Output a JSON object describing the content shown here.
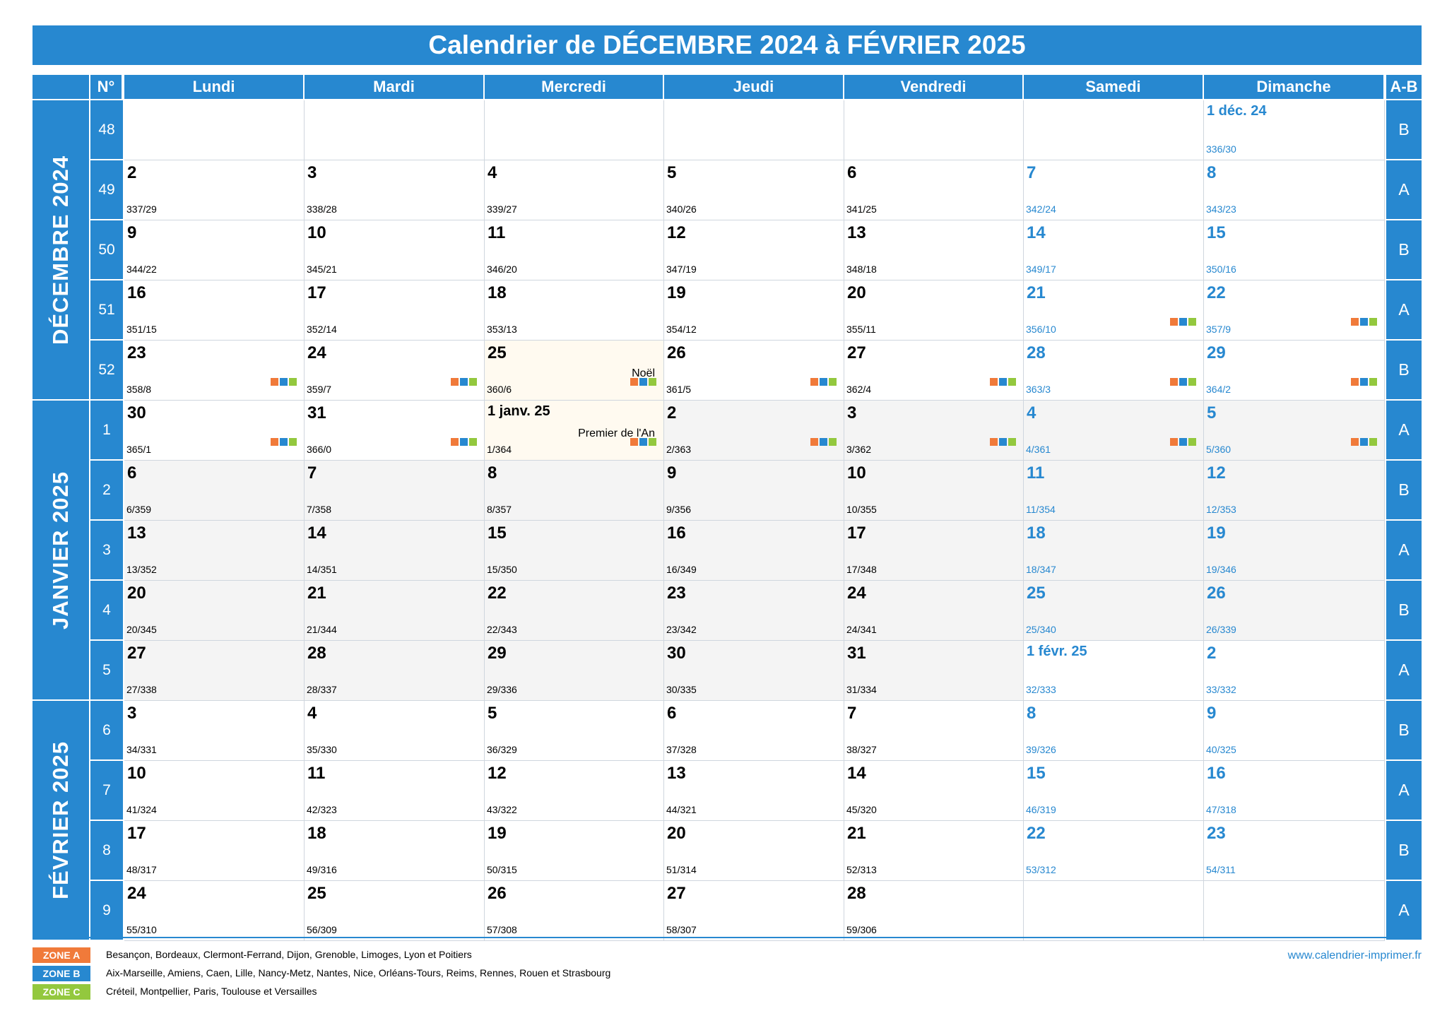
{
  "title": "Calendrier de DÉCEMBRE 2024 à FÉVRIER 2025",
  "header": {
    "num": "N°",
    "days": [
      "Lundi",
      "Mardi",
      "Mercredi",
      "Jeudi",
      "Vendredi",
      "Samedi",
      "Dimanche"
    ],
    "ab": "A-B"
  },
  "months": [
    {
      "label": "DÉCEMBRE 2024",
      "first_row": 0,
      "rows": 5
    },
    {
      "label": "JANVIER 2025",
      "first_row": 5,
      "rows": 5
    },
    {
      "label": "FÉVRIER 2025",
      "first_row": 10,
      "rows": 4
    }
  ],
  "weeks": [
    {
      "n": "48",
      "ab": "B",
      "days": [
        null,
        null,
        null,
        null,
        null,
        null,
        {
          "d": "1 déc. 24",
          "n": "336/30"
        }
      ]
    },
    {
      "n": "49",
      "ab": "A",
      "days": [
        {
          "d": "2",
          "n": "337/29"
        },
        {
          "d": "3",
          "n": "338/28"
        },
        {
          "d": "4",
          "n": "339/27"
        },
        {
          "d": "5",
          "n": "340/26"
        },
        {
          "d": "6",
          "n": "341/25"
        },
        {
          "d": "7",
          "n": "342/24"
        },
        {
          "d": "8",
          "n": "343/23"
        }
      ]
    },
    {
      "n": "50",
      "ab": "B",
      "days": [
        {
          "d": "9",
          "n": "344/22"
        },
        {
          "d": "10",
          "n": "345/21"
        },
        {
          "d": "11",
          "n": "346/20"
        },
        {
          "d": "12",
          "n": "347/19"
        },
        {
          "d": "13",
          "n": "348/18"
        },
        {
          "d": "14",
          "n": "349/17"
        },
        {
          "d": "15",
          "n": "350/16"
        }
      ]
    },
    {
      "n": "51",
      "ab": "A",
      "days": [
        {
          "d": "16",
          "n": "351/15"
        },
        {
          "d": "17",
          "n": "352/14"
        },
        {
          "d": "18",
          "n": "353/13"
        },
        {
          "d": "19",
          "n": "354/12"
        },
        {
          "d": "20",
          "n": "355/11"
        },
        {
          "d": "21",
          "n": "356/10",
          "z": true
        },
        {
          "d": "22",
          "n": "357/9",
          "z": true
        }
      ]
    },
    {
      "n": "52",
      "ab": "B",
      "days": [
        {
          "d": "23",
          "n": "358/8",
          "z": true
        },
        {
          "d": "24",
          "n": "359/7",
          "z": true
        },
        {
          "d": "25",
          "n": "360/6",
          "z": true,
          "h": "Noël"
        },
        {
          "d": "26",
          "n": "361/5",
          "z": true
        },
        {
          "d": "27",
          "n": "362/4",
          "z": true
        },
        {
          "d": "28",
          "n": "363/3",
          "z": true
        },
        {
          "d": "29",
          "n": "364/2",
          "z": true
        }
      ]
    },
    {
      "n": "1",
      "ab": "A",
      "days": [
        {
          "d": "30",
          "n": "365/1",
          "z": true
        },
        {
          "d": "31",
          "n": "366/0",
          "z": true
        },
        {
          "d": "1 janv. 25",
          "n": "1/364",
          "z": true,
          "h": "Premier de l'An",
          "j": true
        },
        {
          "d": "2",
          "n": "2/363",
          "z": true,
          "j": true
        },
        {
          "d": "3",
          "n": "3/362",
          "z": true,
          "j": true
        },
        {
          "d": "4",
          "n": "4/361",
          "z": true,
          "j": true
        },
        {
          "d": "5",
          "n": "5/360",
          "z": true,
          "j": true
        }
      ]
    },
    {
      "n": "2",
      "ab": "B",
      "days": [
        {
          "d": "6",
          "n": "6/359",
          "j": true
        },
        {
          "d": "7",
          "n": "7/358",
          "j": true
        },
        {
          "d": "8",
          "n": "8/357",
          "j": true
        },
        {
          "d": "9",
          "n": "9/356",
          "j": true
        },
        {
          "d": "10",
          "n": "10/355",
          "j": true
        },
        {
          "d": "11",
          "n": "11/354",
          "j": true
        },
        {
          "d": "12",
          "n": "12/353",
          "j": true
        }
      ]
    },
    {
      "n": "3",
      "ab": "A",
      "days": [
        {
          "d": "13",
          "n": "13/352",
          "j": true
        },
        {
          "d": "14",
          "n": "14/351",
          "j": true
        },
        {
          "d": "15",
          "n": "15/350",
          "j": true
        },
        {
          "d": "16",
          "n": "16/349",
          "j": true
        },
        {
          "d": "17",
          "n": "17/348",
          "j": true
        },
        {
          "d": "18",
          "n": "18/347",
          "j": true
        },
        {
          "d": "19",
          "n": "19/346",
          "j": true
        }
      ]
    },
    {
      "n": "4",
      "ab": "B",
      "days": [
        {
          "d": "20",
          "n": "20/345",
          "j": true
        },
        {
          "d": "21",
          "n": "21/344",
          "j": true
        },
        {
          "d": "22",
          "n": "22/343",
          "j": true
        },
        {
          "d": "23",
          "n": "23/342",
          "j": true
        },
        {
          "d": "24",
          "n": "24/341",
          "j": true
        },
        {
          "d": "25",
          "n": "25/340",
          "j": true
        },
        {
          "d": "26",
          "n": "26/339",
          "j": true
        }
      ]
    },
    {
      "n": "5",
      "ab": "A",
      "days": [
        {
          "d": "27",
          "n": "27/338",
          "j": true
        },
        {
          "d": "28",
          "n": "28/337",
          "j": true
        },
        {
          "d": "29",
          "n": "29/336",
          "j": true
        },
        {
          "d": "30",
          "n": "30/335",
          "j": true
        },
        {
          "d": "31",
          "n": "31/334",
          "j": true
        },
        {
          "d": "1 févr. 25",
          "n": "32/333"
        },
        {
          "d": "2",
          "n": "33/332"
        }
      ]
    },
    {
      "n": "6",
      "ab": "B",
      "days": [
        {
          "d": "3",
          "n": "34/331"
        },
        {
          "d": "4",
          "n": "35/330"
        },
        {
          "d": "5",
          "n": "36/329"
        },
        {
          "d": "6",
          "n": "37/328"
        },
        {
          "d": "7",
          "n": "38/327"
        },
        {
          "d": "8",
          "n": "39/326"
        },
        {
          "d": "9",
          "n": "40/325"
        }
      ]
    },
    {
      "n": "7",
      "ab": "A",
      "days": [
        {
          "d": "10",
          "n": "41/324"
        },
        {
          "d": "11",
          "n": "42/323"
        },
        {
          "d": "12",
          "n": "43/322"
        },
        {
          "d": "13",
          "n": "44/321"
        },
        {
          "d": "14",
          "n": "45/320"
        },
        {
          "d": "15",
          "n": "46/319"
        },
        {
          "d": "16",
          "n": "47/318"
        }
      ]
    },
    {
      "n": "8",
      "ab": "B",
      "days": [
        {
          "d": "17",
          "n": "48/317"
        },
        {
          "d": "18",
          "n": "49/316"
        },
        {
          "d": "19",
          "n": "50/315"
        },
        {
          "d": "20",
          "n": "51/314"
        },
        {
          "d": "21",
          "n": "52/313"
        },
        {
          "d": "22",
          "n": "53/312"
        },
        {
          "d": "23",
          "n": "54/311"
        }
      ]
    },
    {
      "n": "9",
      "ab": "A",
      "days": [
        {
          "d": "24",
          "n": "55/310"
        },
        {
          "d": "25",
          "n": "56/309"
        },
        {
          "d": "26",
          "n": "57/308"
        },
        {
          "d": "27",
          "n": "58/307"
        },
        {
          "d": "28",
          "n": "59/306"
        },
        null,
        null
      ]
    }
  ],
  "legend": [
    {
      "badge": "ZONE A",
      "color": "#f07a3a",
      "text": "Besançon, Bordeaux, Clermont-Ferrand, Dijon, Grenoble, Limoges, Lyon et Poitiers"
    },
    {
      "badge": "ZONE B",
      "color": "#2788d0",
      "text": "Aix-Marseille, Amiens, Caen, Lille, Nancy-Metz, Nantes, Nice, Orléans-Tours, Reims, Rennes, Rouen et Strasbourg"
    },
    {
      "badge": "ZONE C",
      "color": "#93c83e",
      "text": "Créteil, Montpellier, Paris, Toulouse et Versailles"
    }
  ],
  "website": "www.calendrier-imprimer.fr",
  "colors": {
    "accent": "#2788d0",
    "zone_a": "#f07a3a",
    "zone_b": "#2788d0",
    "zone_c": "#93c83e"
  }
}
